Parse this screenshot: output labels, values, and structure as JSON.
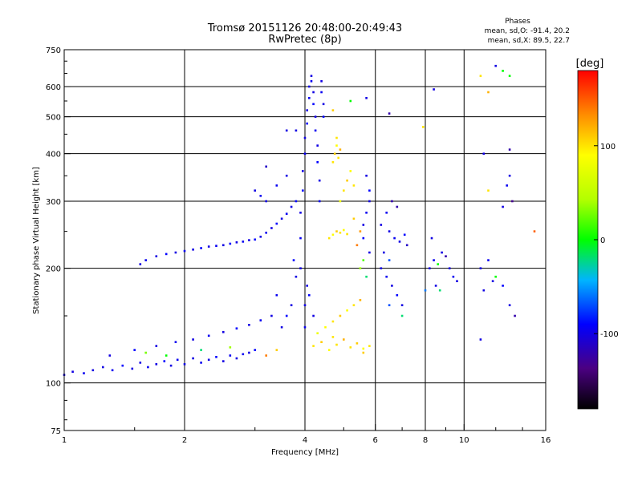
{
  "chart_data": {
    "type": "scatter",
    "title": "Tromsø 20151126 20:48:00-20:49:43",
    "subtitle": "RwPretec (8p)",
    "xlabel": "Frequency [MHz]",
    "ylabel": "Stationary phase Virtual Height [km]",
    "x_scale": "log",
    "y_scale": "log",
    "xlim": [
      1,
      16
    ],
    "ylim": [
      75,
      750
    ],
    "x_ticks": [
      1,
      2,
      4,
      6,
      8,
      10,
      16
    ],
    "x_tick_labels": [
      "1",
      "2",
      "4",
      "6",
      "8",
      "10",
      "16"
    ],
    "y_ticks": [
      75,
      100,
      200,
      300,
      400,
      500,
      600,
      750
    ],
    "y_tick_labels": [
      "75",
      "100",
      "200",
      "300",
      "400",
      "500",
      "600",
      "750"
    ],
    "grid": true,
    "stats": {
      "heading": "Phases",
      "o_line": "mean, sd,O: -91.4, 20.2",
      "x_line": "mean, sd,X:  89.5, 22.7"
    },
    "colorbar": {
      "label": "[deg]",
      "range": [
        -180,
        180
      ],
      "ticks": [
        100,
        0,
        -100
      ],
      "tick_labels": [
        "100",
        "0",
        "-100"
      ]
    },
    "series": [
      {
        "columns": [
          "frequency_mhz",
          "height_km",
          "phase_deg"
        ],
        "points": [
          [
            1.0,
            105,
            -100
          ],
          [
            1.05,
            107,
            -100
          ],
          [
            1.12,
            106,
            -95
          ],
          [
            1.18,
            108,
            -100
          ],
          [
            1.25,
            110,
            -100
          ],
          [
            1.32,
            108,
            -95
          ],
          [
            1.4,
            111,
            -90
          ],
          [
            1.48,
            109,
            -100
          ],
          [
            1.55,
            113,
            -100
          ],
          [
            1.62,
            110,
            -95
          ],
          [
            1.7,
            112,
            -100
          ],
          [
            1.78,
            114,
            -90
          ],
          [
            1.85,
            111,
            -100
          ],
          [
            1.92,
            115,
            -95
          ],
          [
            2.0,
            112,
            -100
          ],
          [
            2.1,
            116,
            -100
          ],
          [
            2.2,
            113,
            -95
          ],
          [
            2.3,
            115,
            -100
          ],
          [
            2.4,
            117,
            -90
          ],
          [
            2.5,
            114,
            -100
          ],
          [
            2.6,
            118,
            -95
          ],
          [
            2.7,
            116,
            -100
          ],
          [
            2.8,
            119,
            -95
          ],
          [
            2.9,
            120,
            -100
          ],
          [
            3.0,
            122,
            -90
          ],
          [
            1.3,
            118,
            -100
          ],
          [
            1.5,
            122,
            -90
          ],
          [
            1.7,
            125,
            -100
          ],
          [
            1.9,
            128,
            -95
          ],
          [
            2.1,
            130,
            -100
          ],
          [
            2.3,
            133,
            -95
          ],
          [
            2.5,
            136,
            -100
          ],
          [
            2.7,
            139,
            -90
          ],
          [
            2.9,
            142,
            -100
          ],
          [
            3.1,
            146,
            -95
          ],
          [
            3.3,
            150,
            -100
          ],
          [
            1.6,
            120,
            30
          ],
          [
            1.8,
            118,
            0
          ],
          [
            2.2,
            122,
            -20
          ],
          [
            2.6,
            124,
            40
          ],
          [
            3.2,
            118,
            140
          ],
          [
            3.4,
            122,
            110
          ],
          [
            1.55,
            205,
            -100
          ],
          [
            1.6,
            210,
            -95
          ],
          [
            1.7,
            215,
            -100
          ],
          [
            1.8,
            218,
            -90
          ],
          [
            1.9,
            220,
            -100
          ],
          [
            2.0,
            222,
            -95
          ],
          [
            2.1,
            224,
            -100
          ],
          [
            2.2,
            226,
            -90
          ],
          [
            2.3,
            228,
            -100
          ],
          [
            2.4,
            229,
            -95
          ],
          [
            2.5,
            230,
            -100
          ],
          [
            2.6,
            232,
            -90
          ],
          [
            2.7,
            234,
            -100
          ],
          [
            2.8,
            235,
            -95
          ],
          [
            2.9,
            237,
            -100
          ],
          [
            3.0,
            238,
            -90
          ],
          [
            3.1,
            242,
            -100
          ],
          [
            3.2,
            248,
            -95
          ],
          [
            3.3,
            255,
            -100
          ],
          [
            3.4,
            262,
            -90
          ],
          [
            3.5,
            270,
            -100
          ],
          [
            3.6,
            278,
            -95
          ],
          [
            3.7,
            290,
            -100
          ],
          [
            3.8,
            300,
            -90
          ],
          [
            3.0,
            320,
            -100
          ],
          [
            3.1,
            310,
            -95
          ],
          [
            3.2,
            300,
            -100
          ],
          [
            3.4,
            330,
            -95
          ],
          [
            3.6,
            350,
            -100
          ],
          [
            3.8,
            460,
            -100
          ],
          [
            3.9,
            200,
            -100
          ],
          [
            3.9,
            240,
            -95
          ],
          [
            3.9,
            280,
            -100
          ],
          [
            3.95,
            320,
            -90
          ],
          [
            3.95,
            360,
            -100
          ],
          [
            4.0,
            400,
            -95
          ],
          [
            4.0,
            440,
            -100
          ],
          [
            4.05,
            480,
            -90
          ],
          [
            4.05,
            520,
            -100
          ],
          [
            4.1,
            560,
            -95
          ],
          [
            4.1,
            600,
            -100
          ],
          [
            4.15,
            640,
            -100
          ],
          [
            4.15,
            620,
            -95
          ],
          [
            4.2,
            580,
            -100
          ],
          [
            4.2,
            540,
            -90
          ],
          [
            4.25,
            500,
            -100
          ],
          [
            4.25,
            460,
            -95
          ],
          [
            4.3,
            420,
            -100
          ],
          [
            4.3,
            380,
            -90
          ],
          [
            4.35,
            340,
            -100
          ],
          [
            4.35,
            300,
            -95
          ],
          [
            4.4,
            620,
            -100
          ],
          [
            4.4,
            580,
            -95
          ],
          [
            4.45,
            540,
            -100
          ],
          [
            4.45,
            500,
            -90
          ],
          [
            4.0,
            160,
            -100
          ],
          [
            4.0,
            140,
            -95
          ],
          [
            4.05,
            180,
            -100
          ],
          [
            4.1,
            170,
            -90
          ],
          [
            4.2,
            150,
            -100
          ],
          [
            3.7,
            160,
            -100
          ],
          [
            3.6,
            150,
            -90
          ],
          [
            3.5,
            140,
            -100
          ],
          [
            3.4,
            170,
            -95
          ],
          [
            3.8,
            190,
            -100
          ],
          [
            3.75,
            210,
            -90
          ],
          [
            4.2,
            125,
            100
          ],
          [
            4.4,
            128,
            110
          ],
          [
            4.6,
            122,
            90
          ],
          [
            4.8,
            126,
            100
          ],
          [
            5.0,
            130,
            120
          ],
          [
            5.2,
            124,
            100
          ],
          [
            5.4,
            127,
            110
          ],
          [
            5.6,
            123,
            90
          ],
          [
            5.8,
            125,
            100
          ],
          [
            5.6,
            120,
            110
          ],
          [
            4.3,
            135,
            80
          ],
          [
            4.7,
            132,
            100
          ],
          [
            4.5,
            140,
            90
          ],
          [
            4.7,
            145,
            100
          ],
          [
            4.9,
            150,
            110
          ],
          [
            5.1,
            155,
            90
          ],
          [
            5.3,
            160,
            100
          ],
          [
            5.5,
            165,
            120
          ],
          [
            4.6,
            240,
            100
          ],
          [
            4.7,
            245,
            90
          ],
          [
            4.8,
            250,
            110
          ],
          [
            4.9,
            248,
            100
          ],
          [
            5.0,
            252,
            90
          ],
          [
            5.1,
            246,
            100
          ],
          [
            4.7,
            380,
            100
          ],
          [
            4.75,
            400,
            110
          ],
          [
            4.8,
            420,
            90
          ],
          [
            4.85,
            390,
            100
          ],
          [
            4.9,
            410,
            120
          ],
          [
            4.8,
            440,
            100
          ],
          [
            4.9,
            300,
            80
          ],
          [
            5.0,
            320,
            100
          ],
          [
            5.1,
            340,
            110
          ],
          [
            5.2,
            360,
            90
          ],
          [
            5.3,
            330,
            100
          ],
          [
            5.6,
            260,
            -100
          ],
          [
            5.7,
            280,
            -95
          ],
          [
            5.8,
            300,
            -100
          ],
          [
            5.8,
            320,
            -90
          ],
          [
            5.7,
            350,
            -100
          ],
          [
            5.6,
            240,
            -90
          ],
          [
            5.8,
            220,
            -100
          ],
          [
            5.5,
            200,
            40
          ],
          [
            5.6,
            210,
            20
          ],
          [
            5.7,
            190,
            -20
          ],
          [
            5.4,
            230,
            140
          ],
          [
            5.5,
            250,
            130
          ],
          [
            5.3,
            270,
            110
          ],
          [
            6.2,
            200,
            -100
          ],
          [
            6.4,
            190,
            -95
          ],
          [
            6.6,
            180,
            -100
          ],
          [
            6.8,
            170,
            -90
          ],
          [
            7.0,
            160,
            -100
          ],
          [
            6.5,
            160,
            -70
          ],
          [
            6.5,
            250,
            -100
          ],
          [
            6.7,
            240,
            -95
          ],
          [
            6.9,
            235,
            -100
          ],
          [
            7.1,
            245,
            -90
          ],
          [
            6.2,
            260,
            -100
          ],
          [
            6.4,
            280,
            -95
          ],
          [
            6.6,
            300,
            -120
          ],
          [
            6.3,
            220,
            -100
          ],
          [
            6.5,
            210,
            -70
          ],
          [
            6.8,
            290,
            -120
          ],
          [
            7.2,
            230,
            -110
          ],
          [
            7.0,
            150,
            -20
          ],
          [
            8.2,
            200,
            -100
          ],
          [
            8.4,
            210,
            -95
          ],
          [
            8.6,
            205,
            0
          ],
          [
            8.8,
            220,
            -100
          ],
          [
            9.0,
            215,
            -120
          ],
          [
            8.5,
            180,
            -100
          ],
          [
            8.7,
            175,
            -20
          ],
          [
            9.2,
            200,
            -100
          ],
          [
            9.4,
            190,
            -95
          ],
          [
            9.6,
            185,
            -100
          ],
          [
            8.0,
            175,
            -60
          ],
          [
            8.3,
            240,
            -100
          ],
          [
            11.0,
            200,
            -100
          ],
          [
            11.5,
            210,
            -95
          ],
          [
            12.0,
            190,
            0
          ],
          [
            11.2,
            175,
            -100
          ],
          [
            12.5,
            180,
            -90
          ],
          [
            11.8,
            185,
            -100
          ],
          [
            11.0,
            640,
            100
          ],
          [
            12.0,
            680,
            -100
          ],
          [
            12.5,
            660,
            0
          ],
          [
            13.0,
            410,
            -120
          ],
          [
            13.0,
            350,
            -100
          ],
          [
            12.8,
            330,
            -95
          ],
          [
            12.5,
            290,
            -100
          ],
          [
            13.2,
            300,
            -130
          ],
          [
            13.0,
            160,
            -100
          ],
          [
            13.4,
            150,
            -120
          ],
          [
            11.0,
            130,
            -100
          ],
          [
            11.5,
            580,
            120
          ],
          [
            8.4,
            590,
            -100
          ],
          [
            7.9,
            470,
            100
          ],
          [
            6.5,
            510,
            -120
          ],
          [
            5.7,
            560,
            -100
          ],
          [
            5.2,
            550,
            0
          ],
          [
            4.7,
            520,
            110
          ],
          [
            3.6,
            460,
            -100
          ],
          [
            3.2,
            370,
            -110
          ],
          [
            15.0,
            250,
            150
          ],
          [
            11.2,
            400,
            -100
          ],
          [
            11.5,
            320,
            100
          ],
          [
            13.0,
            640,
            0
          ]
        ]
      }
    ]
  }
}
